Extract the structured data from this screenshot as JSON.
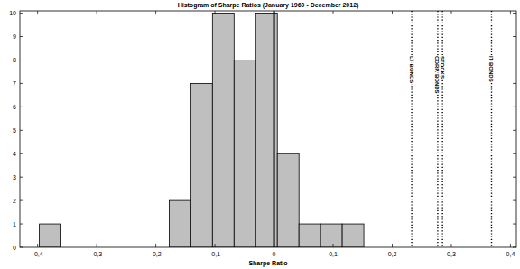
{
  "chart_data": {
    "type": "histogram",
    "title": "Histogram of Sharpe Ratios (January 1960 - December 2012)",
    "x_label": "Sharpe Ratio",
    "bins": [
      -0.397,
      -0.3604,
      -0.3238,
      -0.2872,
      -0.2506,
      -0.214,
      -0.1774,
      -0.1408,
      -0.1042,
      -0.0676,
      -0.031,
      0.0056,
      0.0422,
      0.0788,
      0.1154,
      0.152
    ],
    "values": [
      1,
      0,
      0,
      0,
      0,
      0,
      2,
      7,
      10,
      8,
      10,
      4,
      1,
      1,
      1
    ],
    "color": "#bfbfbf",
    "xlim": [
      -0.43,
      0.41
    ],
    "ylim": [
      0,
      10.1
    ],
    "xticks": [
      {
        "value": -0.4,
        "label": "-0,4"
      },
      {
        "value": -0.3,
        "label": "-0,3"
      },
      {
        "value": -0.2,
        "label": "-0,2"
      },
      {
        "value": -0.1,
        "label": "-0,1"
      },
      0,
      {
        "value": 0.1,
        "label": "0,1"
      },
      {
        "value": 0.2,
        "label": "0,2"
      },
      {
        "value": 0.3,
        "label": "0,3"
      },
      {
        "value": 0.4,
        "label": "0,4"
      }
    ],
    "yticks": [
      0,
      1,
      2,
      3,
      4,
      5,
      6,
      7,
      8,
      9,
      10
    ],
    "vlines": [
      {
        "value": 0,
        "line_style": "solid"
      },
      {
        "value": 0.233,
        "label": "LT BONDS",
        "line_style": "dotted"
      },
      {
        "value": 0.277,
        "label": "CORP. BONDS",
        "line_style": "dotted"
      },
      {
        "value": 0.285,
        "label": "STOCKS",
        "line_style": "dotted"
      },
      {
        "value": 0.368,
        "label": "IT BONDS",
        "line_style": "dotted"
      }
    ],
    "grid": false
  }
}
